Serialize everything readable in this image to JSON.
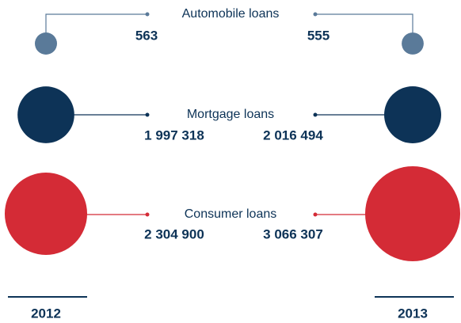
{
  "chart_data": {
    "type": "paired-bubbles",
    "categories": [
      "Automobile loans",
      "Mortgage loans",
      "Consumer loans"
    ],
    "colors": [
      "#5a7a99",
      "#0d3357",
      "#d42b36"
    ],
    "series": [
      {
        "name": "2012",
        "values": [
          563,
          1997318,
          2304900
        ],
        "value_labels": [
          "563",
          "1 997 318",
          "2 304 900"
        ]
      },
      {
        "name": "2013",
        "values": [
          555,
          2016494,
          3066307
        ],
        "value_labels": [
          "555",
          "2 016 494",
          "3 066 307"
        ]
      }
    ]
  }
}
